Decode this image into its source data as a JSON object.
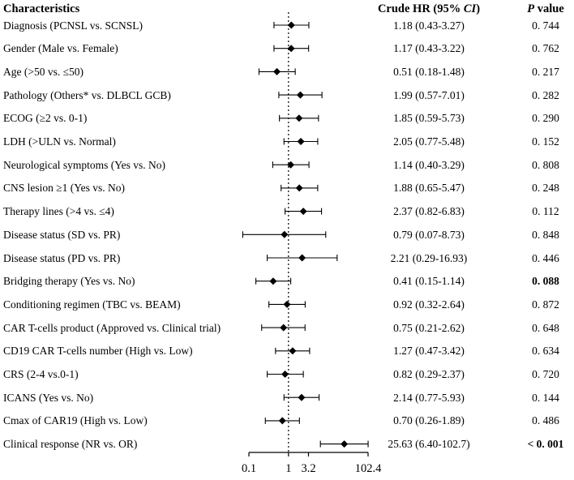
{
  "header": {
    "characteristics": "Characteristics",
    "hr_prefix": "Crude HR (95% ",
    "hr_ci_italic": "CI",
    "hr_suffix": ")",
    "p_italic": "P",
    "p_rest": " value"
  },
  "colors": {
    "foreground": "#000000",
    "background": "#ffffff"
  },
  "chart_data": {
    "type": "forest",
    "columns": [
      "Characteristics",
      "Crude HR (95% CI)",
      "P value"
    ],
    "x_axis": {
      "scale": "log2",
      "min": 0.1,
      "max": 102.4,
      "log2_span": 10,
      "tick_values": [
        0.1,
        1,
        3.2,
        102.4
      ],
      "tick_labels": [
        "0.1",
        "1",
        "3.2",
        "102.4"
      ],
      "reference_line": 1
    },
    "rows": [
      {
        "label": "Diagnosis (PCNSL vs. SCNSL)",
        "hr": 1.18,
        "lo": 0.43,
        "hi": 3.27,
        "hr_text": "1.18 (0.43-3.27)",
        "p": "0. 744",
        "bold": false
      },
      {
        "label": "Gender (Male vs. Female)",
        "hr": 1.17,
        "lo": 0.43,
        "hi": 3.22,
        "hr_text": "1.17 (0.43-3.22)",
        "p": "0. 762",
        "bold": false
      },
      {
        "label": "Age (>50 vs. ≤50)",
        "hr": 0.51,
        "lo": 0.18,
        "hi": 1.48,
        "hr_text": "0.51 (0.18-1.48)",
        "p": "0. 217",
        "bold": false
      },
      {
        "label": "Pathology (Others* vs. DLBCL GCB)",
        "hr": 1.99,
        "lo": 0.57,
        "hi": 7.01,
        "hr_text": "1.99 (0.57-7.01)",
        "p": "0. 282",
        "bold": false
      },
      {
        "label": "ECOG (≥2 vs. 0-1)",
        "hr": 1.85,
        "lo": 0.59,
        "hi": 5.73,
        "hr_text": "1.85 (0.59-5.73)",
        "p": "0. 290",
        "bold": false
      },
      {
        "label": "LDH (>ULN vs. Normal)",
        "hr": 2.05,
        "lo": 0.77,
        "hi": 5.48,
        "hr_text": "2.05 (0.77-5.48)",
        "p": "0. 152",
        "bold": false
      },
      {
        "label": "Neurological symptoms (Yes vs. No)",
        "hr": 1.14,
        "lo": 0.4,
        "hi": 3.29,
        "hr_text": "1.14 (0.40-3.29)",
        "p": "0. 808",
        "bold": false
      },
      {
        "label": "CNS lesion ≥1 (Yes vs. No)",
        "hr": 1.88,
        "lo": 0.65,
        "hi": 5.47,
        "hr_text": "1.88 (0.65-5.47)",
        "p": "0. 248",
        "bold": false
      },
      {
        "label": "Therapy lines (>4 vs. ≤4)",
        "hr": 2.37,
        "lo": 0.82,
        "hi": 6.83,
        "hr_text": "2.37 (0.82-6.83)",
        "p": "0. 112",
        "bold": false
      },
      {
        "label": "Disease status (SD vs. PR)",
        "hr": 0.79,
        "lo": 0.07,
        "hi": 8.73,
        "hr_text": "0.79 (0.07-8.73)",
        "p": "0. 848",
        "bold": false
      },
      {
        "label": "Disease status (PD vs. PR)",
        "hr": 2.21,
        "lo": 0.29,
        "hi": 16.93,
        "hr_text": "2.21 (0.29-16.93)",
        "p": "0. 446",
        "bold": false
      },
      {
        "label": "Bridging therapy (Yes vs. No)",
        "hr": 0.41,
        "lo": 0.15,
        "hi": 1.14,
        "hr_text": "0.41 (0.15-1.14)",
        "p": "0. 088",
        "bold": true
      },
      {
        "label": "Conditioning regimen (TBC vs. BEAM)",
        "hr": 0.92,
        "lo": 0.32,
        "hi": 2.64,
        "hr_text": "0.92 (0.32-2.64)",
        "p": "0. 872",
        "bold": false
      },
      {
        "label": "CAR T-cells product (Approved vs. Clinical trial)",
        "hr": 0.75,
        "lo": 0.21,
        "hi": 2.62,
        "hr_text": "0.75 (0.21-2.62)",
        "p": "0. 648",
        "bold": false
      },
      {
        "label": "CD19 CAR T-cells number (High vs. Low)",
        "hr": 1.27,
        "lo": 0.47,
        "hi": 3.42,
        "hr_text": "1.27 (0.47-3.42)",
        "p": "0. 634",
        "bold": false
      },
      {
        "label": "CRS (2-4 vs.0-1)",
        "hr": 0.82,
        "lo": 0.29,
        "hi": 2.37,
        "hr_text": "0.82 (0.29-2.37)",
        "p": "0. 720",
        "bold": false
      },
      {
        "label": "ICANS (Yes vs. No)",
        "hr": 2.14,
        "lo": 0.77,
        "hi": 5.93,
        "hr_text": "2.14 (0.77-5.93)",
        "p": "0. 144",
        "bold": false
      },
      {
        "label": "Cmax of CAR19 (High vs. Low)",
        "hr": 0.7,
        "lo": 0.26,
        "hi": 1.89,
        "hr_text": "0.70 (0.26-1.89)",
        "p": "0. 486",
        "bold": false
      },
      {
        "label": "Clinical response (NR vs. OR)",
        "hr": 25.63,
        "lo": 6.4,
        "hi": 102.7,
        "hr_text": "25.63 (6.40-102.7)",
        "p": "< 0. 001",
        "bold": true
      }
    ]
  }
}
